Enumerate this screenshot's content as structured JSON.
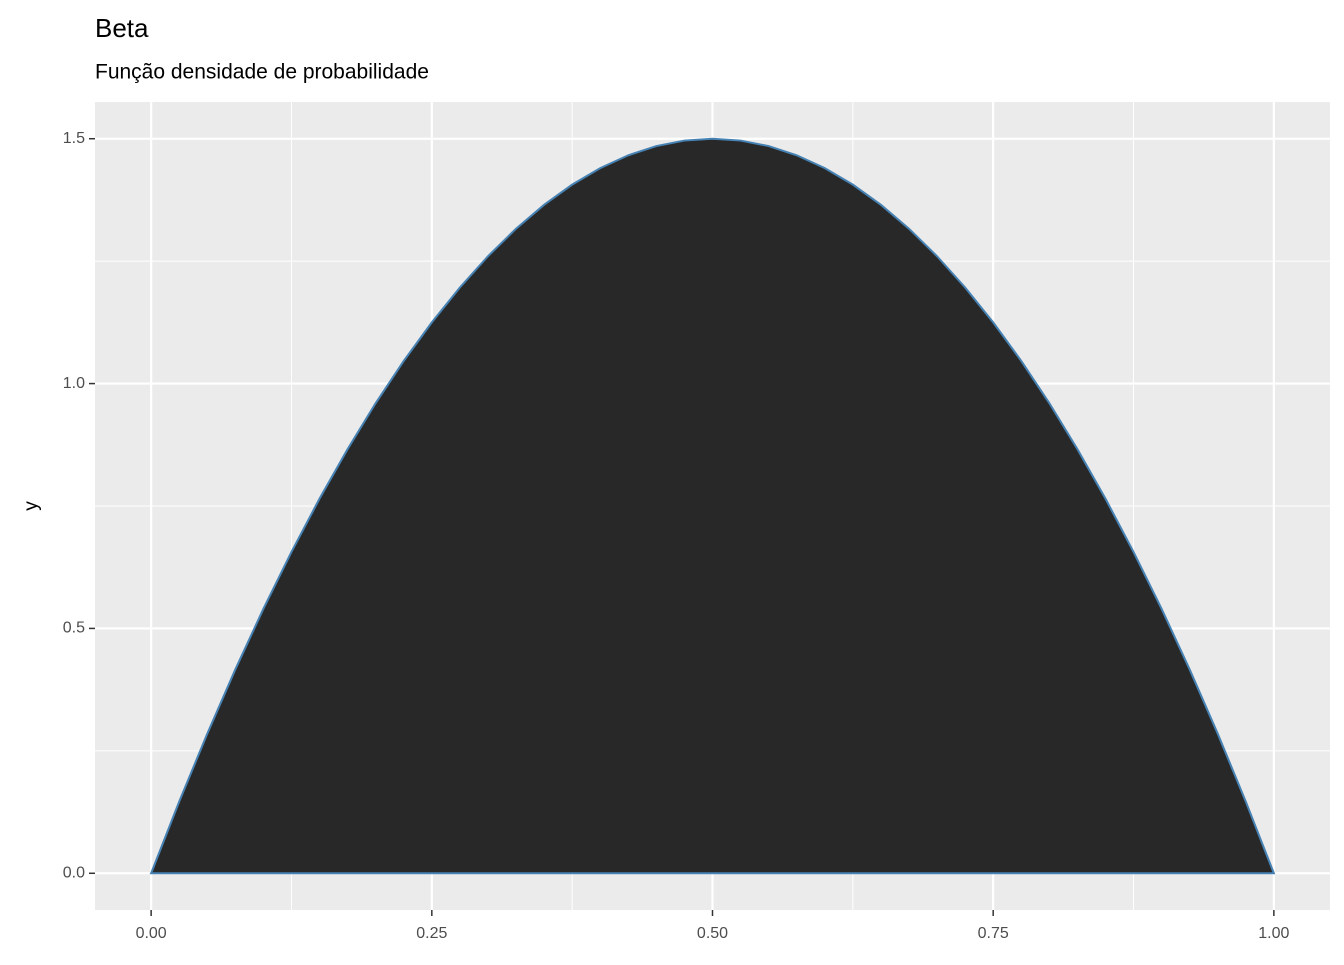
{
  "chart_data": {
    "type": "area",
    "title": "Beta",
    "subtitle": "Função densidade de probabilidade",
    "y_label": "y",
    "x": [
      0,
      0.025,
      0.05,
      0.075,
      0.1,
      0.125,
      0.15,
      0.175,
      0.2,
      0.225,
      0.25,
      0.275,
      0.3,
      0.325,
      0.35,
      0.375,
      0.4,
      0.425,
      0.45,
      0.475,
      0.5,
      0.525,
      0.55,
      0.575,
      0.6,
      0.625,
      0.65,
      0.675,
      0.7,
      0.725,
      0.75,
      0.775,
      0.8,
      0.825,
      0.85,
      0.875,
      0.9,
      0.925,
      0.95,
      0.975,
      1
    ],
    "values": [
      0,
      0.14625,
      0.285,
      0.41625,
      0.54,
      0.65625,
      0.765,
      0.86625,
      0.96,
      1.04625,
      1.125,
      1.19625,
      1.26,
      1.31625,
      1.365,
      1.40625,
      1.44,
      1.46625,
      1.485,
      1.49625,
      1.5,
      1.49625,
      1.485,
      1.46625,
      1.44,
      1.40625,
      1.365,
      1.31625,
      1.26,
      1.19625,
      1.125,
      1.04625,
      0.96,
      0.86625,
      0.765,
      0.65625,
      0.54,
      0.41625,
      0.285,
      0.14625,
      0
    ],
    "color": "#282828",
    "line_color": "#4682b4",
    "xlim": [
      -0.05,
      1.05
    ],
    "ylim": [
      -0.075,
      1.575
    ],
    "xticks": [
      {
        "value": 0,
        "label": "0.00"
      },
      0.25,
      {
        "value": 0.5,
        "label": "0.50"
      },
      0.75,
      {
        "value": 1,
        "label": "1.00"
      }
    ],
    "yticks": [
      {
        "value": 0,
        "label": "0.0"
      },
      0.5,
      {
        "value": 1,
        "label": "1.0"
      },
      1.5
    ],
    "grid": true
  }
}
